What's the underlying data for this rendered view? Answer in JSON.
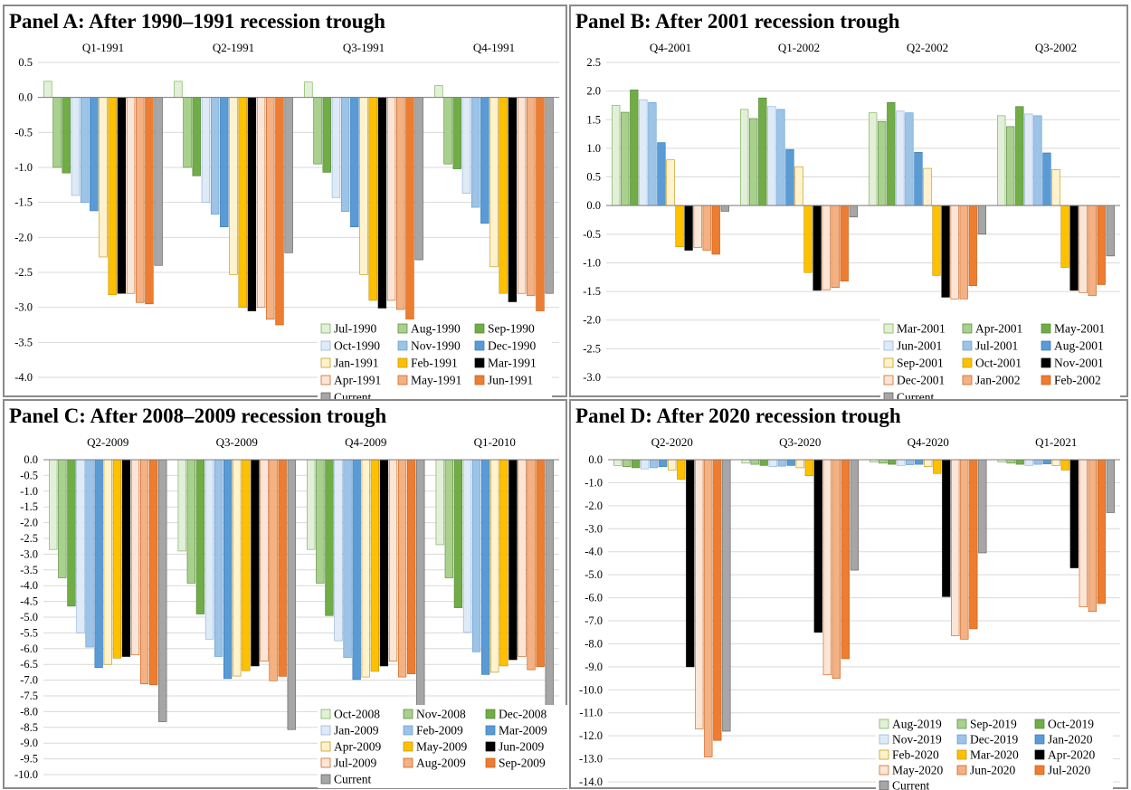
{
  "colors": {
    "border": "#8a8a8a",
    "grid": "#d9d9d9",
    "axis": "#7f7f7f",
    "text": "#000000"
  },
  "series_styles": {
    "s1": {
      "fill": "#e2efd9",
      "stroke": "#70ad47"
    },
    "s2": {
      "fill": "#a9d18e",
      "stroke": "#548235"
    },
    "s3": {
      "fill": "#70ad47",
      "stroke": "#548235"
    },
    "s4": {
      "fill": "#deebf7",
      "stroke": "#8faadc"
    },
    "s5": {
      "fill": "#9dc3e6",
      "stroke": "#5b9bd5"
    },
    "s6": {
      "fill": "#5b9bd5",
      "stroke": "#2e75b6"
    },
    "s7": {
      "fill": "#fff2cc",
      "stroke": "#bf9000"
    },
    "s8": {
      "fill": "#ffc000",
      "stroke": "#bf9000"
    },
    "s9": {
      "fill": "#000000",
      "stroke": "#000000"
    },
    "s10": {
      "fill": "#fbe5d6",
      "stroke": "#c55a11"
    },
    "s11": {
      "fill": "#f4b183",
      "stroke": "#c55a11"
    },
    "s12": {
      "fill": "#ed7d31",
      "stroke": "#c55a11"
    },
    "s13": {
      "fill": "#a6a6a6",
      "stroke": "#595959"
    }
  },
  "chart_data": [
    {
      "type": "bar",
      "title": "Panel A: After 1990–1991 recession trough",
      "categories": [
        "Q1-1991",
        "Q2-1991",
        "Q3-1991",
        "Q4-1991"
      ],
      "ylim": [
        -4.0,
        0.5
      ],
      "yticks": [
        0.5,
        0.0,
        -0.5,
        -1.0,
        -1.5,
        -2.0,
        -2.5,
        -3.0,
        -3.5,
        -4.0
      ],
      "tick_decimals": 1,
      "legend": "bottom-right",
      "series": [
        {
          "name": "Jul-1990",
          "style": "s1",
          "values": [
            0.23,
            0.23,
            0.22,
            0.17
          ]
        },
        {
          "name": "Aug-1990",
          "style": "s2",
          "values": [
            -1.0,
            -1.0,
            -0.95,
            -0.95
          ]
        },
        {
          "name": "Sep-1990",
          "style": "s3",
          "values": [
            -1.08,
            -1.12,
            -1.07,
            -1.02
          ]
        },
        {
          "name": "Oct-1990",
          "style": "s4",
          "values": [
            -1.4,
            -1.5,
            -1.43,
            -1.37
          ]
        },
        {
          "name": "Nov-1990",
          "style": "s5",
          "values": [
            -1.5,
            -1.67,
            -1.63,
            -1.57
          ]
        },
        {
          "name": "Dec-1990",
          "style": "s6",
          "values": [
            -1.62,
            -1.85,
            -1.85,
            -1.8
          ]
        },
        {
          "name": "Jan-1991",
          "style": "s7",
          "values": [
            -2.28,
            -2.53,
            -2.53,
            -2.42
          ]
        },
        {
          "name": "Feb-1991",
          "style": "s8",
          "values": [
            -2.82,
            -3.0,
            -2.9,
            -2.8
          ]
        },
        {
          "name": "Mar-1991",
          "style": "s9",
          "values": [
            -2.8,
            -3.05,
            -3.01,
            -2.92
          ]
        },
        {
          "name": "Apr-1991",
          "style": "s10",
          "values": [
            -2.8,
            -3.0,
            -2.9,
            -2.8
          ]
        },
        {
          "name": "May-1991",
          "style": "s11",
          "values": [
            -2.93,
            -3.17,
            -3.03,
            -2.83
          ]
        },
        {
          "name": "Jun-1991",
          "style": "s12",
          "values": [
            -2.95,
            -3.25,
            -3.2,
            -3.05
          ]
        },
        {
          "name": "Current",
          "style": "s13",
          "values": [
            -2.4,
            -2.22,
            -2.32,
            -2.8
          ]
        }
      ]
    },
    {
      "type": "bar",
      "title": "Panel B: After 2001 recession trough",
      "categories": [
        "Q4-2001",
        "Q1-2002",
        "Q2-2002",
        "Q3-2002"
      ],
      "ylim": [
        -3.0,
        2.5
      ],
      "yticks": [
        2.5,
        2.0,
        1.5,
        1.0,
        0.5,
        0.0,
        -0.5,
        -1.0,
        -1.5,
        -2.0,
        -2.5,
        -3.0
      ],
      "tick_decimals": 1,
      "legend": "bottom-right",
      "series": [
        {
          "name": "Mar-2001",
          "style": "s1",
          "values": [
            1.75,
            1.68,
            1.62,
            1.57
          ]
        },
        {
          "name": "Apr-2001",
          "style": "s2",
          "values": [
            1.63,
            1.52,
            1.47,
            1.38
          ]
        },
        {
          "name": "May-2001",
          "style": "s3",
          "values": [
            2.02,
            1.88,
            1.8,
            1.73
          ]
        },
        {
          "name": "Jun-2001",
          "style": "s4",
          "values": [
            1.85,
            1.73,
            1.65,
            1.6
          ]
        },
        {
          "name": "Jul-2001",
          "style": "s5",
          "values": [
            1.8,
            1.68,
            1.62,
            1.57
          ]
        },
        {
          "name": "Aug-2001",
          "style": "s6",
          "values": [
            1.1,
            0.98,
            0.93,
            0.92
          ]
        },
        {
          "name": "Sep-2001",
          "style": "s7",
          "values": [
            0.8,
            0.68,
            0.65,
            0.63
          ]
        },
        {
          "name": "Oct-2001",
          "style": "s8",
          "values": [
            -0.72,
            -1.17,
            -1.22,
            -1.08
          ]
        },
        {
          "name": "Nov-2001",
          "style": "s9",
          "values": [
            -0.78,
            -1.48,
            -1.6,
            -1.48
          ]
        },
        {
          "name": "Dec-2001",
          "style": "s10",
          "values": [
            -0.73,
            -1.47,
            -1.63,
            -1.52
          ]
        },
        {
          "name": "Jan-2002",
          "style": "s11",
          "values": [
            -0.78,
            -1.43,
            -1.63,
            -1.57
          ]
        },
        {
          "name": "Feb-2002",
          "style": "s12",
          "values": [
            -0.85,
            -1.32,
            -1.4,
            -1.38
          ]
        },
        {
          "name": "Current",
          "style": "s13",
          "values": [
            -0.1,
            -0.2,
            -0.5,
            -0.88
          ]
        }
      ]
    },
    {
      "type": "bar",
      "title": "Panel C: After 2008–2009 recession trough",
      "categories": [
        "Q2-2009",
        "Q3-2009",
        "Q4-2009",
        "Q1-2010"
      ],
      "ylim": [
        -10.0,
        0.0
      ],
      "yticks": [
        0.0,
        -0.5,
        -1.0,
        -1.5,
        -2.0,
        -2.5,
        -3.0,
        -3.5,
        -4.0,
        -4.5,
        -5.0,
        -5.5,
        -6.0,
        -6.5,
        -7.0,
        -7.5,
        -8.0,
        -8.5,
        -9.0,
        -9.5,
        -10.0
      ],
      "tick_decimals": 1,
      "legend": "bottom-right",
      "series": [
        {
          "name": "Oct-2008",
          "style": "s1",
          "values": [
            -2.85,
            -2.9,
            -2.85,
            -2.7
          ]
        },
        {
          "name": "Nov-2008",
          "style": "s2",
          "values": [
            -3.75,
            -3.92,
            -3.92,
            -3.75
          ]
        },
        {
          "name": "Dec-2008",
          "style": "s3",
          "values": [
            -4.65,
            -4.9,
            -4.95,
            -4.7
          ]
        },
        {
          "name": "Jan-2009",
          "style": "s4",
          "values": [
            -5.5,
            -5.7,
            -5.75,
            -5.47
          ]
        },
        {
          "name": "Feb-2009",
          "style": "s5",
          "values": [
            -5.95,
            -6.25,
            -6.28,
            -6.1
          ]
        },
        {
          "name": "Mar-2009",
          "style": "s6",
          "values": [
            -6.6,
            -6.95,
            -6.98,
            -6.82
          ]
        },
        {
          "name": "Apr-2009",
          "style": "s7",
          "values": [
            -6.5,
            -6.87,
            -6.9,
            -6.75
          ]
        },
        {
          "name": "May-2009",
          "style": "s8",
          "values": [
            -6.3,
            -6.7,
            -6.72,
            -6.55
          ]
        },
        {
          "name": "Jun-2009",
          "style": "s9",
          "values": [
            -6.25,
            -6.55,
            -6.55,
            -6.35
          ]
        },
        {
          "name": "Jul-2009",
          "style": "s10",
          "values": [
            -6.2,
            -6.4,
            -6.4,
            -6.25
          ]
        },
        {
          "name": "Aug-2009",
          "style": "s11",
          "values": [
            -7.12,
            -7.02,
            -6.9,
            -6.67
          ]
        },
        {
          "name": "Sep-2009",
          "style": "s12",
          "values": [
            -7.15,
            -6.88,
            -6.8,
            -6.57
          ]
        },
        {
          "name": "Current",
          "style": "s13",
          "values": [
            -8.32,
            -8.57,
            -7.92,
            -8.0
          ]
        }
      ]
    },
    {
      "type": "bar",
      "title": "Panel D: After 2020 recession trough",
      "categories": [
        "Q2-2020",
        "Q3-2020",
        "Q4-2020",
        "Q1-2021"
      ],
      "ylim": [
        -14.0,
        0.0
      ],
      "yticks": [
        0.0,
        -1.0,
        -2.0,
        -3.0,
        -4.0,
        -5.0,
        -6.0,
        -7.0,
        -8.0,
        -9.0,
        -10.0,
        -11.0,
        -12.0,
        -13.0,
        -14.0
      ],
      "tick_decimals": 1,
      "legend": "bottom-right",
      "series": [
        {
          "name": "Aug-2019",
          "style": "s1",
          "values": [
            -0.25,
            -0.15,
            -0.1,
            -0.1
          ]
        },
        {
          "name": "Sep-2019",
          "style": "s2",
          "values": [
            -0.3,
            -0.2,
            -0.15,
            -0.15
          ]
        },
        {
          "name": "Oct-2019",
          "style": "s3",
          "values": [
            -0.35,
            -0.25,
            -0.2,
            -0.2
          ]
        },
        {
          "name": "Nov-2019",
          "style": "s4",
          "values": [
            -0.4,
            -0.3,
            -0.25,
            -0.25
          ]
        },
        {
          "name": "Dec-2019",
          "style": "s5",
          "values": [
            -0.35,
            -0.28,
            -0.22,
            -0.2
          ]
        },
        {
          "name": "Jan-2020",
          "style": "s6",
          "values": [
            -0.3,
            -0.25,
            -0.2,
            -0.18
          ]
        },
        {
          "name": "Feb-2020",
          "style": "s7",
          "values": [
            -0.45,
            -0.35,
            -0.3,
            -0.25
          ]
        },
        {
          "name": "Mar-2020",
          "style": "s8",
          "values": [
            -0.85,
            -0.7,
            -0.6,
            -0.45
          ]
        },
        {
          "name": "Apr-2020",
          "style": "s9",
          "values": [
            -9.0,
            -7.5,
            -5.95,
            -4.7
          ]
        },
        {
          "name": "May-2020",
          "style": "s10",
          "values": [
            -11.7,
            -9.35,
            -7.65,
            -6.4
          ]
        },
        {
          "name": "Jun-2020",
          "style": "s11",
          "values": [
            -12.92,
            -9.5,
            -7.8,
            -6.6
          ]
        },
        {
          "name": "Jul-2020",
          "style": "s12",
          "values": [
            -12.2,
            -8.65,
            -7.35,
            -6.25
          ]
        },
        {
          "name": "Current",
          "style": "s13",
          "values": [
            -11.8,
            -4.8,
            -4.05,
            -2.3
          ]
        }
      ]
    }
  ]
}
